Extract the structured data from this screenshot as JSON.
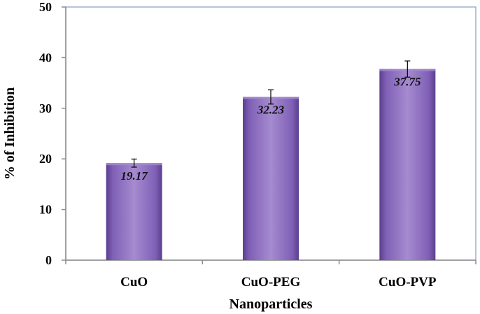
{
  "chart_data": {
    "type": "bar",
    "categories": [
      "CuO",
      "CuO-PEG",
      "CuO-PVP"
    ],
    "values": [
      19.17,
      32.23,
      37.75
    ],
    "data_labels": [
      "19.17",
      "32.23",
      "37.75"
    ],
    "error": [
      0.8,
      1.4,
      1.6
    ],
    "title": "",
    "xlabel": "Nanoparticles",
    "ylabel": "% of Inhibition",
    "ylim": [
      0,
      50
    ],
    "yticks": [
      "0",
      "10",
      "20",
      "30",
      "40",
      "50"
    ],
    "grid": false,
    "legend": "none",
    "colors": {
      "bar_light": "#a58bd0",
      "bar_mid": "#8060b6",
      "bar_dark": "#5b3f8f",
      "plot_border": "#8aa6c8",
      "axis": "#8a8a8a"
    }
  }
}
